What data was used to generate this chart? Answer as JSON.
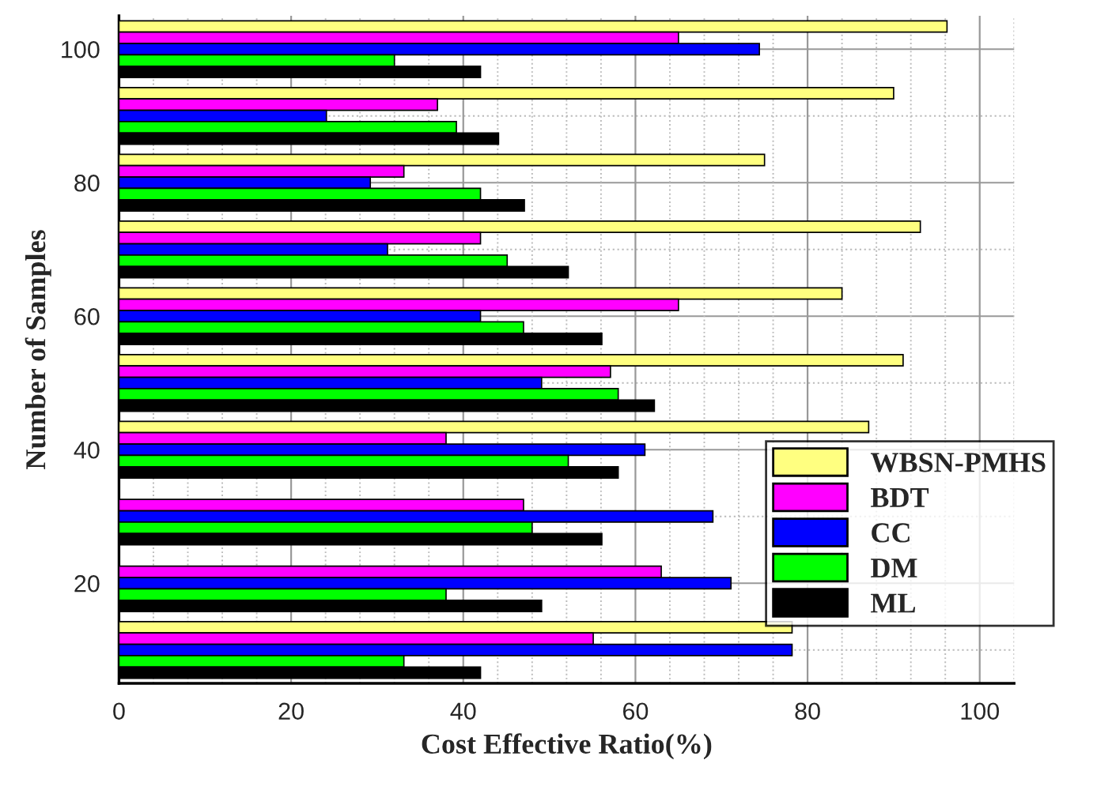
{
  "chart_data": {
    "type": "bar",
    "orientation": "horizontal",
    "xlabel": "Cost Effective Ratio(%)",
    "ylabel": "Number of Samples",
    "categories": [
      "100",
      null,
      "80",
      null,
      "60",
      null,
      "40",
      null,
      "20",
      null
    ],
    "series": [
      {
        "name": "WBSN-PMHS",
        "color": "#ffff80",
        "values": [
          96.2,
          90,
          75,
          93.1,
          84,
          91.1,
          87.1,
          null,
          null,
          78.2
        ]
      },
      {
        "name": "BDT",
        "color": "#ff00ff",
        "values": [
          65,
          37,
          33.1,
          42,
          65,
          57.1,
          38,
          47,
          63,
          55.1
        ]
      },
      {
        "name": "CC",
        "color": "#0000ff",
        "values": [
          74.4,
          24.1,
          29.2,
          31.2,
          42,
          49.1,
          61.1,
          69,
          71.1,
          78.2
        ]
      },
      {
        "name": "DM",
        "color": "#00ff00",
        "values": [
          32,
          39.2,
          42,
          45.1,
          47,
          58,
          52.2,
          48,
          38,
          33.1
        ]
      },
      {
        "name": "ML",
        "color": "#000000",
        "values": [
          42,
          44.1,
          47.1,
          52.2,
          56.1,
          62.2,
          58,
          56.1,
          49.1,
          42
        ]
      }
    ],
    "xlim": [
      0,
      104
    ],
    "xticks": [
      0,
      20,
      40,
      60,
      80,
      100
    ],
    "grid": true,
    "legend": "bottom right"
  }
}
